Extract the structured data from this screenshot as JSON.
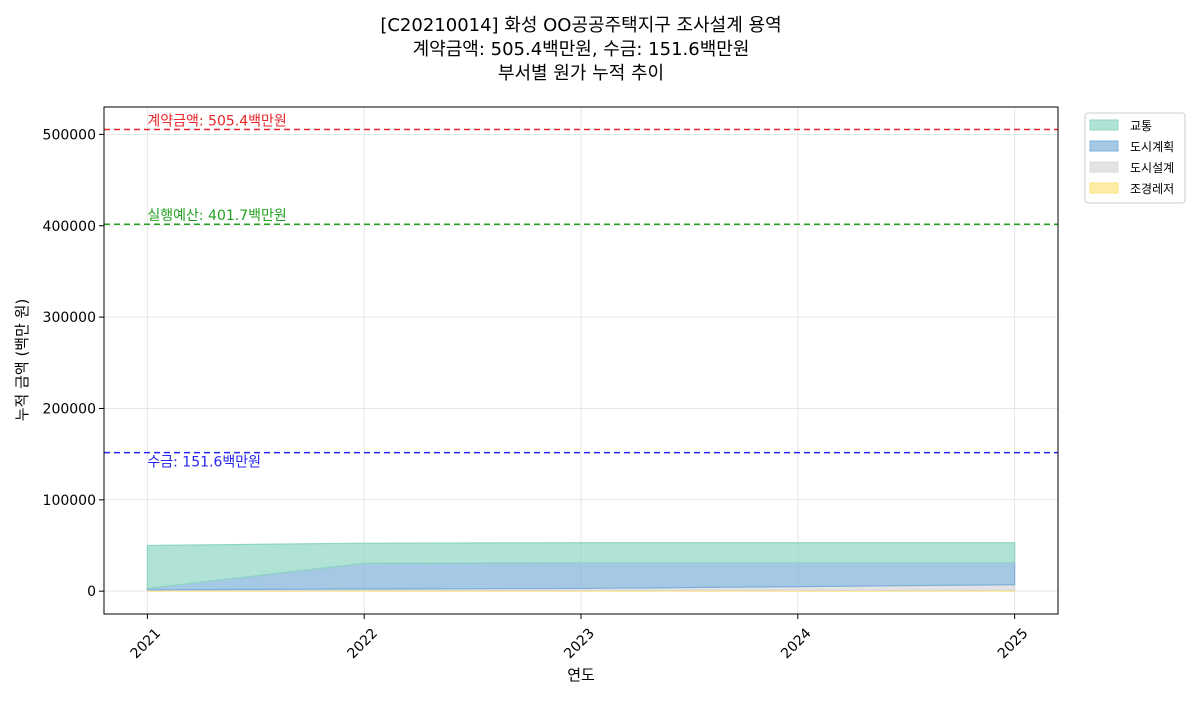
{
  "chart_data": {
    "type": "area",
    "title_lines": [
      "[C20210014] 화성 OO공공주택지구 조사설계 용역",
      "계약금액: 505.4백만원, 수금: 151.6백만원",
      "부서별 원가 누적 추이"
    ],
    "xlabel": "연도",
    "ylabel": "누적 금액 (백만 원)",
    "x": [
      2021,
      2022,
      2023,
      2024,
      2025
    ],
    "x_tick_labels": [
      "2021",
      "2022",
      "2023",
      "2024",
      "2025"
    ],
    "xlim": [
      2020.8,
      2025.2
    ],
    "ylim": [
      -25000,
      530000
    ],
    "y_ticks": [
      0,
      100000,
      200000,
      300000,
      400000,
      500000
    ],
    "y_tick_labels": [
      "0",
      "100000",
      "200000",
      "300000",
      "400000",
      "500000"
    ],
    "grid": true,
    "legend_position": "outside-top-right",
    "stacked": true,
    "series": [
      {
        "name": "조경레저",
        "color": "#ffe680",
        "values": [
          1000,
          1000,
          1000,
          1000,
          1000
        ]
      },
      {
        "name": "도시설계",
        "color": "#d9d9d9",
        "values": [
          500,
          1500,
          2000,
          4000,
          6000
        ]
      },
      {
        "name": "도시계획",
        "color": "#7fb0d9",
        "values": [
          1500,
          28000,
          28000,
          26000,
          24000
        ]
      },
      {
        "name": "교통",
        "color": "#8fd5c3",
        "values": [
          47000,
          22000,
          22000,
          22000,
          22000
        ]
      }
    ],
    "legend_order": [
      "교통",
      "도시계획",
      "도시설계",
      "조경레저"
    ],
    "reference_lines": [
      {
        "label": "계약금액: 505.4백만원",
        "value": 505400,
        "color": "#e8252a",
        "label_position": "above"
      },
      {
        "label": "실행예산: 401.7백만원",
        "value": 401700,
        "color": "#23a023",
        "label_position": "above"
      },
      {
        "label": "수금: 151.6백만원",
        "value": 151600,
        "color": "#2525f0",
        "label_position": "below"
      }
    ]
  }
}
